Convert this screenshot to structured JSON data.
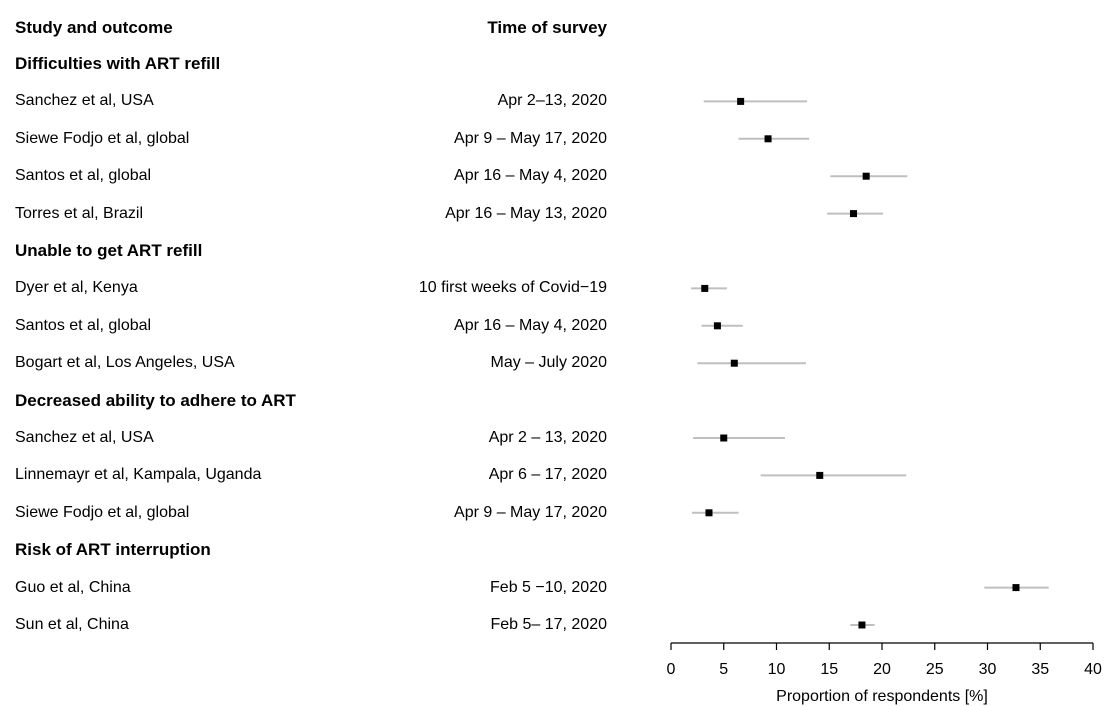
{
  "headers": {
    "study": "Study and outcome",
    "time": "Time of survey"
  },
  "chart_data": {
    "type": "scatter",
    "subtype": "forest-plot",
    "xlabel": "Proportion of respondents [%]",
    "xlim": [
      0,
      40
    ],
    "xticks": [
      0,
      5,
      10,
      15,
      20,
      25,
      30,
      35,
      40
    ],
    "groups": [
      {
        "title": "Difficulties with ART refill",
        "rows": [
          {
            "study": "Sanchez et al, USA",
            "time": "Apr 2–13, 2020",
            "estimate": 6.6,
            "lower": 3.1,
            "upper": 12.9
          },
          {
            "study": "Siewe Fodjo et al, global",
            "time": "Apr 9 – May 17, 2020",
            "estimate": 9.2,
            "lower": 6.4,
            "upper": 13.1
          },
          {
            "study": "Santos et al, global",
            "time": "Apr 16 – May 4, 2020",
            "estimate": 18.5,
            "lower": 15.1,
            "upper": 22.4
          },
          {
            "study": "Torres et al, Brazil",
            "time": "Apr 16 – May 13, 2020",
            "estimate": 17.3,
            "lower": 14.8,
            "upper": 20.1
          }
        ]
      },
      {
        "title": "Unable to get ART refill",
        "rows": [
          {
            "study": "Dyer et al, Kenya",
            "time": "10 first weeks of Covid−19",
            "estimate": 3.2,
            "lower": 1.9,
            "upper": 5.3
          },
          {
            "study": "Santos et al, global",
            "time": "Apr 16 – May 4, 2020",
            "estimate": 4.4,
            "lower": 2.9,
            "upper": 6.8
          },
          {
            "study": "Bogart et al, Los Angeles, USA",
            "time": "May – July 2020",
            "estimate": 6.0,
            "lower": 2.5,
            "upper": 12.8
          }
        ]
      },
      {
        "title": "Decreased ability to adhere to ART",
        "rows": [
          {
            "study": "Sanchez et al, USA",
            "time": "Apr 2 – 13, 2020",
            "estimate": 5.0,
            "lower": 2.1,
            "upper": 10.8
          },
          {
            "study": "Linnemayr et al, Kampala, Uganda",
            "time": "Apr 6 – 17, 2020",
            "estimate": 14.1,
            "lower": 8.5,
            "upper": 22.3
          },
          {
            "study": "Siewe Fodjo et al, global",
            "time": "Apr 9 – May 17, 2020",
            "estimate": 3.6,
            "lower": 2.0,
            "upper": 6.4
          }
        ]
      },
      {
        "title": "Risk of ART interruption",
        "rows": [
          {
            "study": "Guo et al, China",
            "time": "Feb 5 −10, 2020",
            "estimate": 32.7,
            "lower": 29.7,
            "upper": 35.8
          },
          {
            "study": "Sun et al, China",
            "time": "Feb 5– 17, 2020",
            "estimate": 18.1,
            "lower": 17.0,
            "upper": 19.3
          }
        ]
      }
    ],
    "colors": {
      "ci": "#bfbfbf",
      "point": "#000000",
      "axis": "#000000"
    },
    "grid": false
  }
}
